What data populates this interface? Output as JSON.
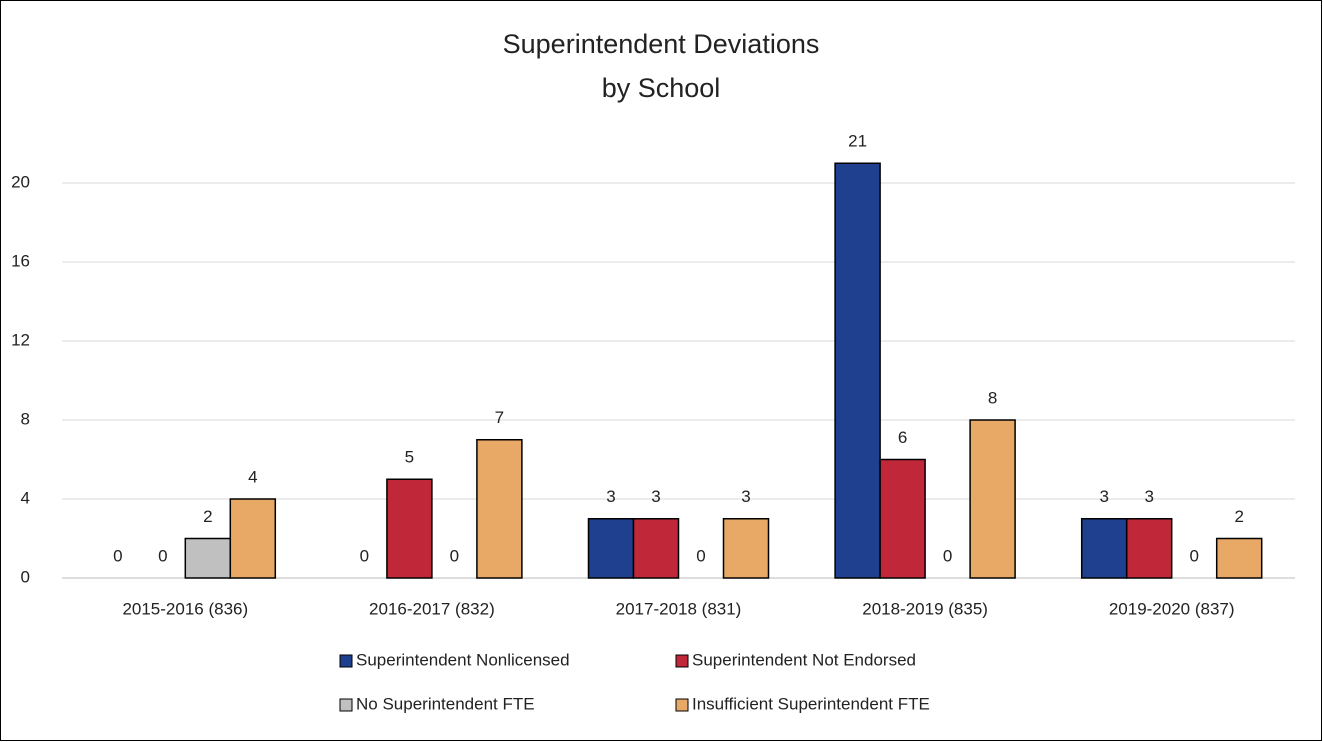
{
  "chart_data": {
    "type": "bar",
    "title": [
      "Superintendent Deviations",
      "by School"
    ],
    "categories": [
      "2015-2016 (836)",
      "2016-2017 (832)",
      "2017-2018 (831)",
      "2018-2019 (835)",
      "2019-2020 (837)"
    ],
    "series": [
      {
        "name": "Superintendent Nonlicensed",
        "color": "#1f3f8f",
        "values": [
          0,
          0,
          3,
          21,
          3
        ]
      },
      {
        "name": "Superintendent Not Endorsed",
        "color": "#c0283a",
        "values": [
          0,
          5,
          3,
          6,
          3
        ]
      },
      {
        "name": "No Superintendent FTE",
        "color": "#c0c0c0",
        "values": [
          2,
          0,
          0,
          0,
          0
        ]
      },
      {
        "name": "Insufficient Superintendent FTE",
        "color": "#e8a866",
        "values": [
          4,
          7,
          3,
          8,
          2
        ]
      }
    ],
    "ylim": [
      0,
      22
    ],
    "yticks": [
      0,
      4,
      8,
      12,
      16,
      20
    ],
    "grid": true,
    "legend": "bottom"
  }
}
